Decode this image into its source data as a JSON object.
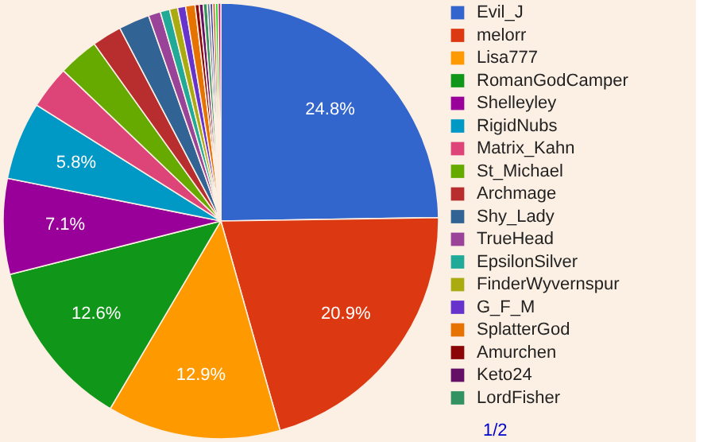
{
  "chart_data": {
    "type": "pie",
    "categories": [
      "Evil_J",
      "melorr",
      "Lisa777",
      "RomanGodCamper",
      "Shelleyley",
      "RigidNubs",
      "Matrix_Kahn",
      "St_Michael",
      "Archmage",
      "Shy_Lady",
      "TrueHead",
      "EpsilonSilver",
      "FinderWyvernspur",
      "G_F_M",
      "SplatterGod",
      "Amurchen",
      "Keto24",
      "LordFisher",
      null,
      null,
      null,
      null,
      null
    ],
    "values": [
      24.8,
      20.9,
      12.9,
      12.6,
      7.1,
      5.8,
      3.2,
      3.0,
      2.2,
      2.3,
      0.9,
      0.7,
      0.6,
      0.6,
      0.7,
      0.3,
      0.3,
      0.3,
      0.2,
      0.2,
      0.2,
      0.2,
      0.2
    ],
    "colors": [
      "#3366cc",
      "#dc3912",
      "#ff9900",
      "#109618",
      "#990099",
      "#0099c6",
      "#dd4477",
      "#66aa00",
      "#b82e2e",
      "#316395",
      "#994499",
      "#22aa99",
      "#aaaa11",
      "#6633cc",
      "#e67300",
      "#8b0707",
      "#651067",
      "#329262",
      "#5574a6",
      "#3b3eac",
      "#b77322",
      "#16d620",
      "#b91383"
    ],
    "value_labels": [
      "24.8%",
      "20.9%",
      "12.9%",
      "12.6%",
      "7.1%",
      "5.8%",
      null,
      null,
      null,
      null,
      null,
      null,
      null,
      null,
      null,
      null,
      null,
      null,
      null,
      null,
      null,
      null,
      null
    ],
    "legend": "right",
    "annotations": [
      "1/2"
    ]
  }
}
